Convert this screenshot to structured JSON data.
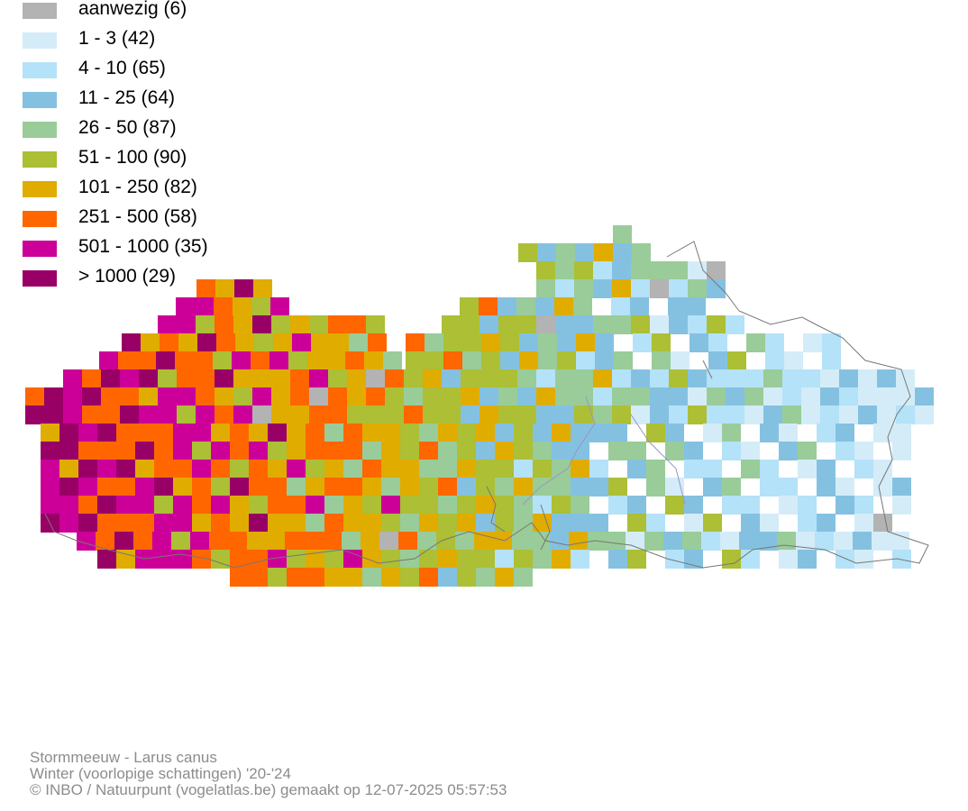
{
  "legend": [
    {
      "label": "aanwezig (6)",
      "color": "#b3b3b3"
    },
    {
      "label": "1 - 3 (42)",
      "color": "#d4ecf8"
    },
    {
      "label": "4 - 10 (65)",
      "color": "#b4e2f8"
    },
    {
      "label": "11 - 25 (64)",
      "color": "#84c1e1"
    },
    {
      "label": "26 - 50 (87)",
      "color": "#99cc99"
    },
    {
      "label": "51 - 100 (90)",
      "color": "#acbf35"
    },
    {
      "label": "101 - 250 (82)",
      "color": "#e0ac00"
    },
    {
      "label": "251 - 500 (58)",
      "color": "#ff6600"
    },
    {
      "label": "501 - 1000 (35)",
      "color": "#cc0099"
    },
    {
      "label": "> 1000 (29)",
      "color": "#990066"
    }
  ],
  "credits": {
    "species": "Stormmeeuw - Larus canus",
    "season": "Winter (voorlopige schattingen) '20-'24",
    "copyright": "© INBO / Natuurpunt (vogelatlas.be) gemaakt op 12-07-2025 05:57:53"
  }
}
